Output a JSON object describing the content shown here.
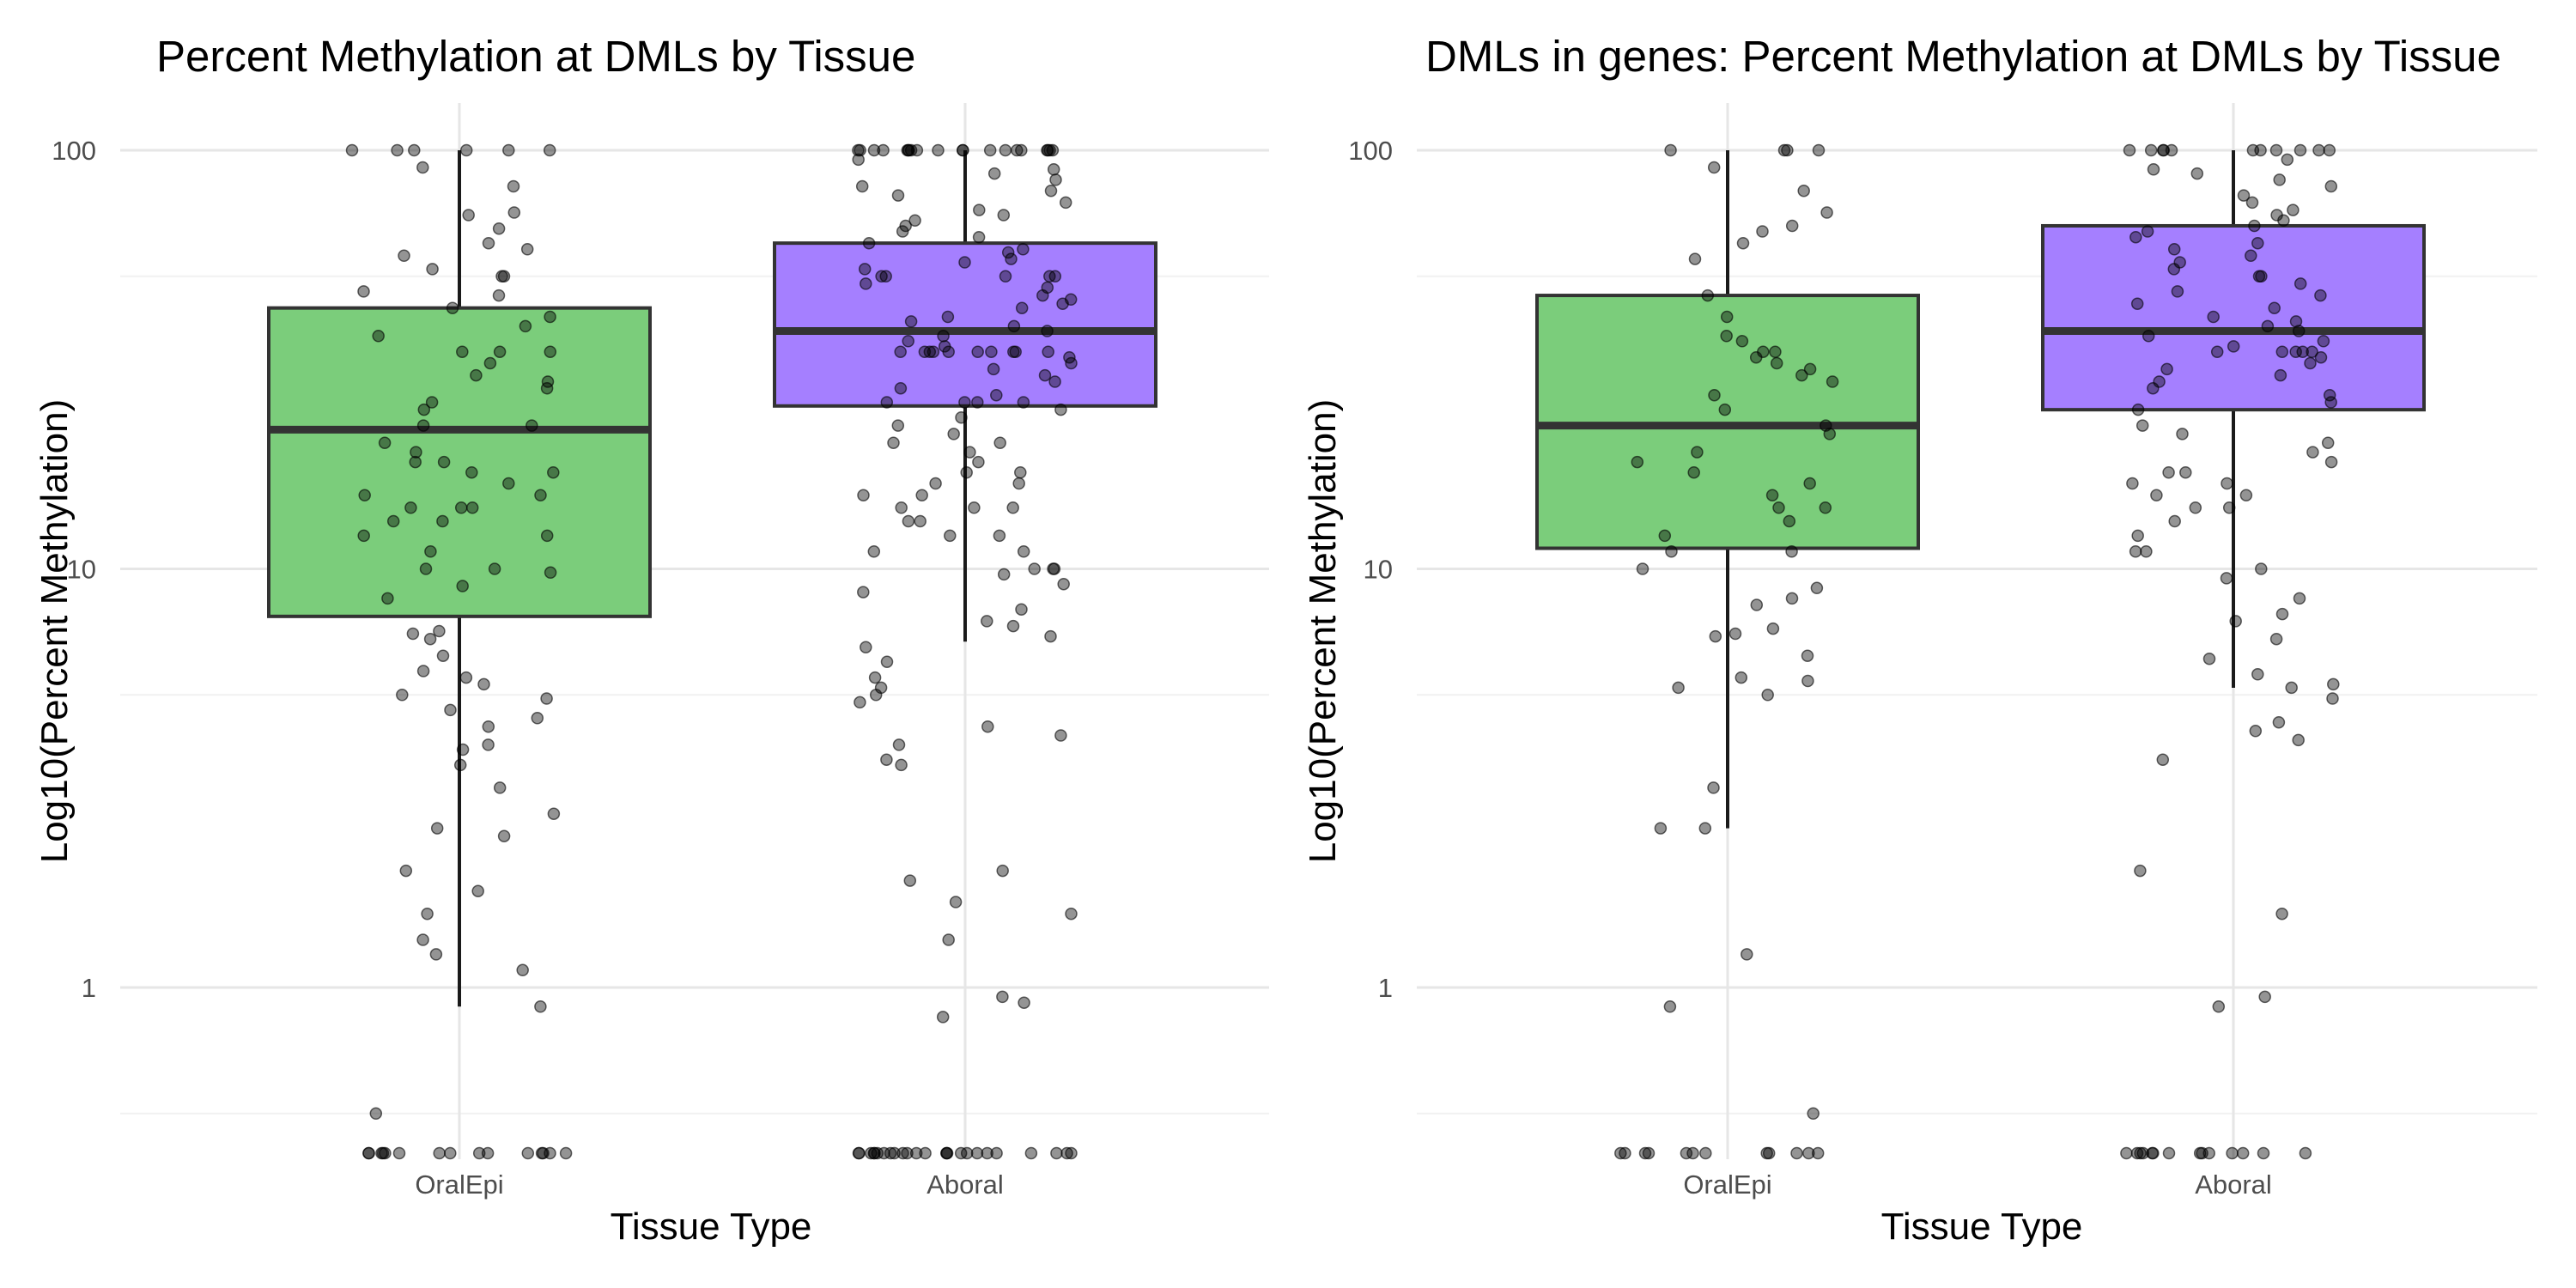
{
  "chart_data": [
    {
      "type": "box",
      "title": "Percent Methylation at DMLs by Tissue",
      "xlabel": "Tissue Type",
      "ylabel": "Log10(Percent Methylation)",
      "y_scale": "log10",
      "y_ticks": [
        1,
        10,
        100
      ],
      "ylim": [
        0.38,
        120
      ],
      "grid": true,
      "legend": "none",
      "zero_values_shown_at_axis_floor": true,
      "categories": [
        "OralEpi",
        "Aboral"
      ],
      "boxes": [
        {
          "category": "OralEpi",
          "fill": "#7bcd7b",
          "q1": 7.7,
          "median": 21.5,
          "q3": 42,
          "whisker_low": 0.9,
          "whisker_high": 100
        },
        {
          "category": "Aboral",
          "fill": "#a57fff",
          "q1": 24.5,
          "median": 37,
          "q3": 60,
          "whisker_low": 6.7,
          "whisker_high": 100
        }
      ],
      "points": [
        {
          "category": "OralEpi",
          "values": [
            100,
            100,
            100,
            100,
            100,
            100,
            91,
            82,
            71,
            70,
            65,
            60,
            58,
            56,
            52,
            50,
            50,
            46,
            45,
            42,
            40,
            38,
            36,
            33,
            33,
            33,
            31,
            29,
            28,
            27,
            25,
            24,
            22,
            22,
            20,
            19,
            18,
            18,
            17,
            17,
            16,
            15,
            15,
            14,
            14,
            14,
            13,
            13,
            12,
            12,
            11,
            10,
            10,
            9.8,
            9.1,
            8.5,
            7.1,
            7.0,
            6.8,
            6.2,
            5.7,
            5.5,
            5.3,
            5.0,
            4.9,
            4.6,
            4.4,
            4.2,
            3.8,
            3.7,
            3.4,
            3.0,
            2.6,
            2.4,
            2.3,
            1.9,
            1.7,
            1.5,
            1.3,
            1.2,
            1.1,
            0.9,
            0.5,
            0,
            0,
            0,
            0,
            0,
            0,
            0,
            0,
            0,
            0,
            0,
            0,
            0,
            0,
            0
          ]
        },
        {
          "category": "Aboral",
          "values": [
            100,
            100,
            100,
            100,
            100,
            100,
            100,
            100,
            100,
            100,
            100,
            100,
            100,
            100,
            100,
            100,
            100,
            100,
            100,
            100,
            95,
            90,
            88,
            85,
            82,
            80,
            78,
            75,
            72,
            70,
            68,
            66,
            64,
            62,
            60,
            58,
            57,
            55,
            54,
            52,
            50,
            50,
            50,
            50,
            50,
            48,
            47,
            45,
            44,
            43,
            42,
            40,
            39,
            38,
            37,
            36,
            35,
            34,
            33,
            33,
            33,
            33,
            33,
            33,
            33,
            33,
            33,
            33,
            32,
            31,
            30,
            29,
            28,
            27,
            26,
            25,
            25,
            25,
            25,
            24,
            23,
            22,
            21,
            20,
            20,
            19,
            18,
            17,
            17,
            16,
            16,
            15,
            15,
            14,
            14,
            14,
            13,
            13,
            12,
            12,
            11,
            11,
            10,
            10,
            10,
            9.7,
            9.2,
            8.8,
            8.0,
            7.5,
            7.3,
            6.9,
            6.5,
            6.0,
            5.5,
            5.2,
            5.0,
            4.8,
            4.2,
            4.0,
            3.8,
            3.5,
            3.4,
            1.9,
            1.8,
            1.6,
            1.5,
            1.3,
            0.95,
            0.92,
            0.85,
            0,
            0,
            0,
            0,
            0,
            0,
            0,
            0,
            0,
            0,
            0,
            0,
            0,
            0,
            0,
            0,
            0,
            0,
            0,
            0,
            0,
            0,
            0,
            0,
            0
          ]
        }
      ]
    },
    {
      "type": "box",
      "title": "DMLs in genes: Percent Methylation at DMLs by Tissue",
      "xlabel": "Tissue Type",
      "ylabel": "Log10(Percent Methylation)",
      "y_scale": "log10",
      "y_ticks": [
        1,
        10,
        100
      ],
      "ylim": [
        0.38,
        120
      ],
      "grid": true,
      "legend": "none",
      "zero_values_shown_at_axis_floor": true,
      "categories": [
        "OralEpi",
        "Aboral"
      ],
      "boxes": [
        {
          "category": "OralEpi",
          "fill": "#7bcd7b",
          "q1": 11.2,
          "median": 22,
          "q3": 45,
          "whisker_low": 2.4,
          "whisker_high": 100
        },
        {
          "category": "Aboral",
          "fill": "#a57fff",
          "q1": 24,
          "median": 37,
          "q3": 66,
          "whisker_low": 5.2,
          "whisker_high": 100
        }
      ],
      "points": [
        {
          "category": "OralEpi",
          "values": [
            100,
            100,
            100,
            100,
            91,
            80,
            71,
            66,
            64,
            60,
            55,
            45,
            40,
            36,
            35,
            33,
            33,
            32,
            31,
            30,
            29,
            28,
            26,
            24,
            22,
            21,
            19,
            18,
            17,
            16,
            15,
            14,
            14,
            13,
            12,
            11,
            11,
            10,
            9.0,
            8.5,
            8.2,
            7.2,
            7.0,
            6.9,
            6.2,
            5.5,
            5.4,
            5.2,
            5.0,
            3.0,
            2.4,
            2.4,
            1.2,
            0.9,
            0.5,
            0,
            0,
            0,
            0,
            0,
            0,
            0,
            0,
            0,
            0,
            0,
            0
          ]
        },
        {
          "category": "Aboral",
          "values": [
            100,
            100,
            100,
            100,
            100,
            100,
            100,
            100,
            100,
            100,
            100,
            95,
            90,
            88,
            85,
            82,
            78,
            75,
            72,
            70,
            68,
            66,
            64,
            62,
            60,
            58,
            56,
            54,
            52,
            50,
            50,
            48,
            46,
            45,
            43,
            42,
            40,
            39,
            38,
            37,
            36,
            35,
            34,
            33,
            33,
            33,
            33,
            33,
            32,
            31,
            30,
            29,
            28,
            27,
            26,
            25,
            24,
            22,
            21,
            20,
            19,
            18,
            17,
            17,
            16,
            16,
            15,
            15,
            14,
            14,
            13,
            12,
            11,
            11,
            10,
            9.5,
            8.5,
            7.8,
            7.5,
            6.8,
            6.1,
            5.6,
            5.3,
            5.2,
            4.9,
            4.3,
            4.1,
            3.9,
            3.5,
            1.9,
            1.5,
            0.95,
            0.9,
            0,
            0,
            0,
            0,
            0,
            0,
            0,
            0,
            0,
            0,
            0,
            0,
            0,
            0
          ]
        }
      ]
    }
  ]
}
